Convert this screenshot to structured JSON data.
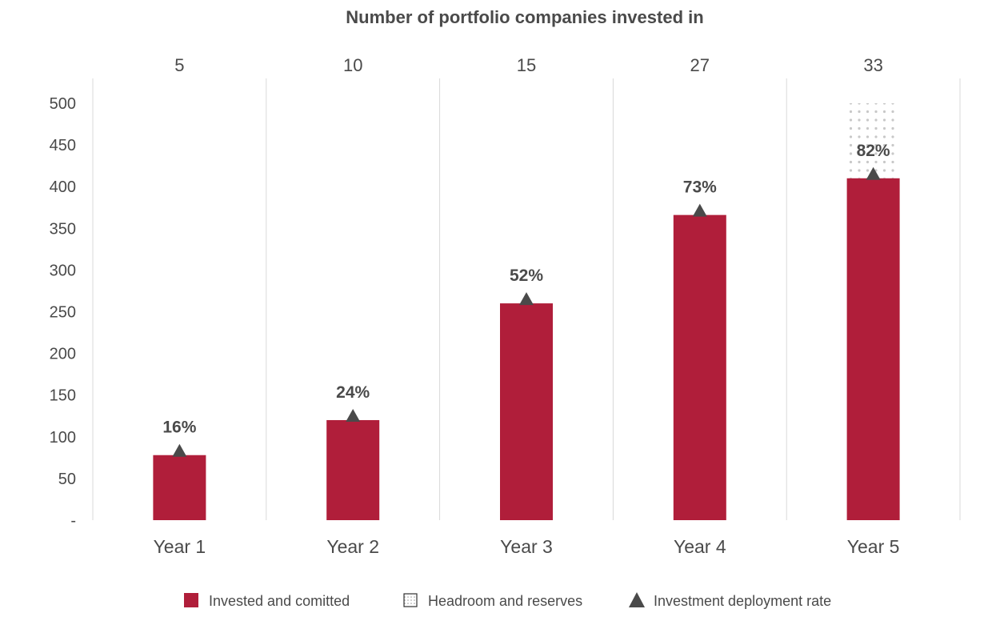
{
  "chart_data": {
    "type": "bar",
    "title": "Number of portfolio companies invested in",
    "categories": [
      "Year 1",
      "Year 2",
      "Year 3",
      "Year 4",
      "Year 5"
    ],
    "top_labels": [
      "5",
      "10",
      "15",
      "27",
      "33"
    ],
    "series": [
      {
        "name": "Invested and comitted",
        "values": [
          78,
          120,
          260,
          366,
          410
        ],
        "color": "#b01e3a"
      },
      {
        "name": "Headroom and reserves",
        "values": [
          0,
          0,
          0,
          0,
          90
        ],
        "pattern": "dotted",
        "color": "#c8c8c8"
      }
    ],
    "deployment_rate": {
      "name": "Investment deployment rate",
      "labels": [
        "16%",
        "24%",
        "52%",
        "73%",
        "82%"
      ],
      "marker": "triangle",
      "color": "#4a4a4a"
    },
    "yticks": [
      "-",
      "50",
      "100",
      "150",
      "200",
      "250",
      "300",
      "350",
      "400",
      "450",
      "500"
    ],
    "ylim": [
      0,
      500
    ],
    "xlabel": "",
    "ylabel": "",
    "grid": "vertical separators",
    "legend_position": "bottom"
  }
}
